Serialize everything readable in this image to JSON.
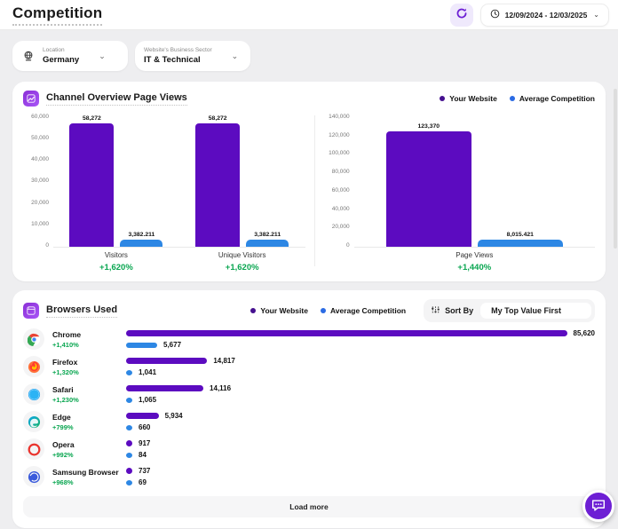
{
  "header": {
    "title": "Competition",
    "date_range": "12/09/2024 - 12/03/2025",
    "refresh_icon": "refresh-icon",
    "clock_icon": "clock-icon"
  },
  "filters": {
    "location": {
      "label": "Location",
      "value": "Germany",
      "icon": "globe-icon"
    },
    "sector": {
      "label": "Website's Business Sector",
      "value": "IT & Technical"
    }
  },
  "legend": {
    "your_website": "Your Website",
    "average_competition": "Average Competition"
  },
  "colors": {
    "your_website": "#5c0bc0",
    "average_competition": "#2d87e4",
    "delta_green": "#09a650"
  },
  "channel_overview": {
    "title": "Channel Overview Page Views"
  },
  "chart_data": [
    {
      "type": "bar",
      "title": "Channel Overview Page Views (Visitors)",
      "ylim": [
        0,
        60000
      ],
      "yticks": [
        "60,000",
        "50,000",
        "40,000",
        "30,000",
        "20,000",
        "10,000",
        "0"
      ],
      "grid": false,
      "legend_position": "top-right",
      "categories": [
        "Visitors",
        "Unique Visitors"
      ],
      "series": [
        {
          "name": "Your Website",
          "values": [
            58272,
            58272
          ],
          "labels": [
            "58,272",
            "58,272"
          ]
        },
        {
          "name": "Average Competition",
          "values": [
            3382.211,
            3382.211
          ],
          "labels": [
            "3,382.211",
            "3,382.211"
          ]
        }
      ],
      "deltas": [
        "+1,620%",
        "+1,620%"
      ]
    },
    {
      "type": "bar",
      "title": "Channel Overview Page Views (Page Views)",
      "ylim": [
        0,
        140000
      ],
      "yticks": [
        "140,000",
        "120,000",
        "100,000",
        "80,000",
        "60,000",
        "40,000",
        "20,000",
        "0"
      ],
      "grid": false,
      "categories": [
        "Page Views"
      ],
      "series": [
        {
          "name": "Your Website",
          "values": [
            123370
          ],
          "labels": [
            "123,370"
          ]
        },
        {
          "name": "Average Competition",
          "values": [
            8015.421
          ],
          "labels": [
            "8,015.421"
          ]
        }
      ],
      "deltas": [
        "+1,440%"
      ]
    },
    {
      "type": "bar",
      "title": "Browsers Used",
      "orientation": "horizontal",
      "xmax": 85620,
      "categories": [
        "Chrome",
        "Firefox",
        "Safari",
        "Edge",
        "Opera",
        "Samsung Browser"
      ],
      "series": [
        {
          "name": "Your Website",
          "values": [
            85620,
            14817,
            14116,
            5934,
            917,
            737
          ],
          "labels": [
            "85,620",
            "14,817",
            "14,116",
            "5,934",
            "917",
            "737"
          ]
        },
        {
          "name": "Average Competition",
          "values": [
            5677,
            1041,
            1065,
            660,
            84,
            69
          ],
          "labels": [
            "5,677",
            "1,041",
            "1,065",
            "660",
            "84",
            "69"
          ]
        }
      ],
      "deltas": [
        "+1,410%",
        "+1,320%",
        "+1,230%",
        "+799%",
        "+992%",
        "+968%"
      ]
    }
  ],
  "browsers": {
    "title": "Browsers Used",
    "sort_by": "Sort By",
    "sort_value": "My Top Value First",
    "rows": [
      {
        "name": "Chrome",
        "icon": "chrome-icon",
        "delta": "+1,410%",
        "your": 85620,
        "your_label": "85,620",
        "avg": 5677,
        "avg_label": "5,677"
      },
      {
        "name": "Firefox",
        "icon": "firefox-icon",
        "delta": "+1,320%",
        "your": 14817,
        "your_label": "14,817",
        "avg": 1041,
        "avg_label": "1,041"
      },
      {
        "name": "Safari",
        "icon": "safari-icon",
        "delta": "+1,230%",
        "your": 14116,
        "your_label": "14,116",
        "avg": 1065,
        "avg_label": "1,065"
      },
      {
        "name": "Edge",
        "icon": "edge-icon",
        "delta": "+799%",
        "your": 5934,
        "your_label": "5,934",
        "avg": 660,
        "avg_label": "660"
      },
      {
        "name": "Opera",
        "icon": "opera-icon",
        "delta": "+992%",
        "your": 917,
        "your_label": "917",
        "avg": 84,
        "avg_label": "84"
      },
      {
        "name": "Samsung Browser",
        "icon": "samsung-icon",
        "delta": "+968%",
        "your": 737,
        "your_label": "737",
        "avg": 69,
        "avg_label": "69"
      }
    ],
    "load_more": "Load more"
  }
}
